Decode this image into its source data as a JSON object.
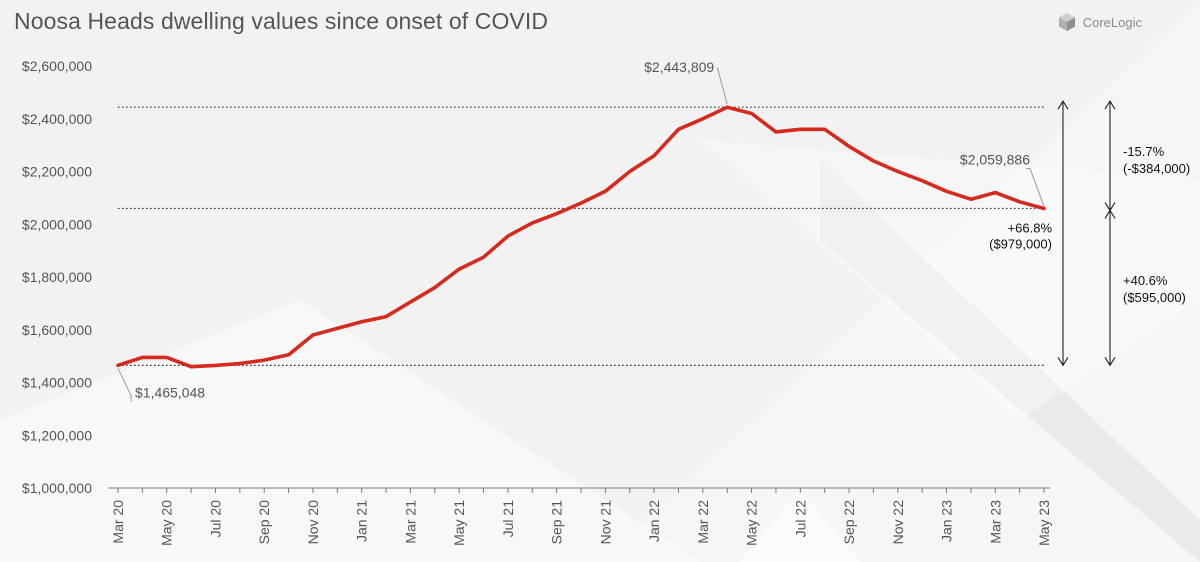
{
  "title": "Noosa Heads dwelling values since onset of COVID",
  "logo": {
    "text": "CoreLogic"
  },
  "colors": {
    "line": "#d52b1e",
    "text": "#555555",
    "axis": "#7a7a7a"
  },
  "chart_data": {
    "type": "line",
    "title": "Noosa Heads dwelling values since onset of COVID",
    "xlabel": "",
    "ylabel": "",
    "ylim": [
      1000000,
      2600000
    ],
    "ytick_labels": [
      "$1,000,000",
      "$1,200,000",
      "$1,400,000",
      "$1,600,000",
      "$1,800,000",
      "$2,000,000",
      "$2,200,000",
      "$2,400,000",
      "$2,600,000"
    ],
    "x_tick_labels": [
      "Mar 20",
      "May 20",
      "Jul 20",
      "Sep 20",
      "Nov 20",
      "Jan 21",
      "Mar 21",
      "May 21",
      "Jul 21",
      "Sep 21",
      "Nov 21",
      "Jan 22",
      "Mar 22",
      "May 22",
      "Jul 22",
      "Sep 22",
      "Nov 22",
      "Jan 23",
      "Mar 23",
      "May 23"
    ],
    "series": [
      {
        "name": "Noosa Heads dwelling values",
        "values": [
          1465048,
          1495000,
          1495000,
          1460000,
          1465000,
          1472000,
          1485000,
          1505000,
          1580000,
          1605000,
          1630000,
          1650000,
          1705000,
          1760000,
          1830000,
          1875000,
          1955000,
          2005000,
          2040000,
          2080000,
          2125000,
          2200000,
          2260000,
          2360000,
          2400000,
          2443809,
          2420000,
          2350000,
          2360000,
          2360000,
          2295000,
          2240000,
          2200000,
          2165000,
          2125000,
          2095000,
          2120000,
          2085000,
          2059886
        ]
      }
    ],
    "annotations": {
      "start": {
        "label": "$1,465,048",
        "value": 1465048
      },
      "peak": {
        "label": "$2,443,809",
        "value": 2443809
      },
      "end": {
        "label": "$2,059,886",
        "value": 2059886
      },
      "growth_to_date": {
        "pct": "+66.8%",
        "amount": "($979,000)"
      },
      "decline_from_peak": {
        "pct": "-15.7%",
        "amount": "(-$384,000)"
      },
      "net_change": {
        "pct": "+40.6%",
        "amount": "($595,000)"
      }
    }
  }
}
